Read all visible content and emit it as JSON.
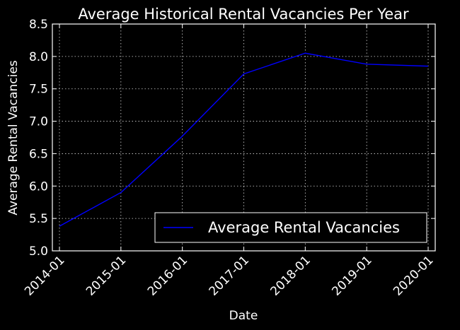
{
  "chart_data": {
    "type": "line",
    "title": "Average Historical Rental Vacancies Per Year",
    "xlabel": "Date",
    "ylabel": "Average Rental Vacancies",
    "x_ticks": [
      "2014-01",
      "2015-01",
      "2016-01",
      "2017-01",
      "2018-01",
      "2019-01",
      "2020-01"
    ],
    "y_ticks": [
      "5.0",
      "5.5",
      "6.0",
      "6.5",
      "7.0",
      "7.5",
      "8.0",
      "8.5"
    ],
    "ylim": [
      5.0,
      8.5
    ],
    "xlim": [
      "2014-01",
      "2020-01"
    ],
    "grid": true,
    "legend_position": "bottom-right",
    "series": [
      {
        "name": "Average Rental Vacancies",
        "color": "#0000ff",
        "x": [
          "2014-01",
          "2015-01",
          "2016-01",
          "2017-01",
          "2018-01",
          "2019-01",
          "2020-01"
        ],
        "values": [
          5.38,
          5.9,
          6.77,
          7.73,
          8.05,
          7.88,
          7.85
        ]
      }
    ]
  },
  "colors": {
    "background": "#000000",
    "foreground": "#ffffff",
    "series": "#0000ff"
  }
}
